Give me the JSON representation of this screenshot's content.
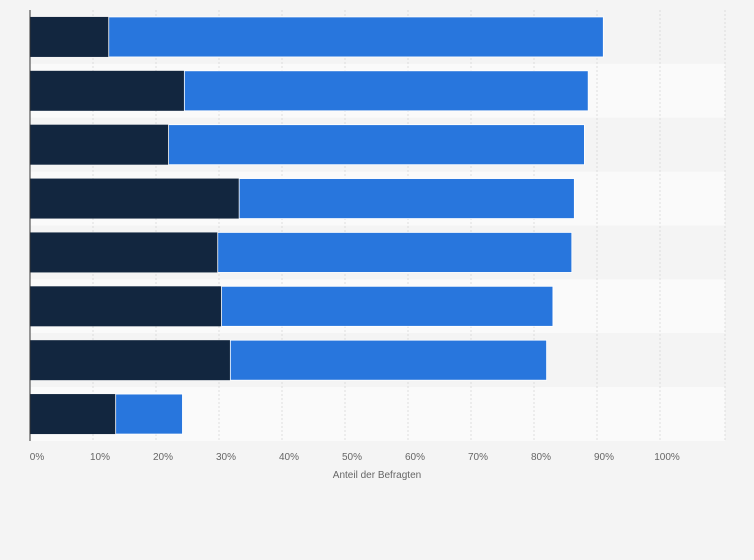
{
  "chart_data": {
    "type": "bar",
    "orientation": "horizontal",
    "stacked": true,
    "categories": [
      "",
      "",
      "",
      "",
      "",
      "",
      "",
      ""
    ],
    "series": [
      {
        "color": "#12263f",
        "values": [
          12.5,
          24.5,
          22,
          33.2,
          29.8,
          30.4,
          31.8,
          13.6
        ]
      },
      {
        "color": "#2876dd",
        "values": [
          78.5,
          64.1,
          66,
          53.2,
          56.2,
          52.6,
          50.2,
          10.6
        ]
      }
    ],
    "xlabel": "Anteil der Befragten",
    "ylabel": "",
    "xlim": [
      0,
      110
    ],
    "xticks": [
      0,
      10,
      20,
      30,
      40,
      50,
      60,
      70,
      80,
      90,
      100
    ],
    "xtick_labels": [
      "0%",
      "10%",
      "20%",
      "30%",
      "40%",
      "50%",
      "60%",
      "70%",
      "80%",
      "90%",
      "100%"
    ],
    "grid": true,
    "legend": "none"
  }
}
